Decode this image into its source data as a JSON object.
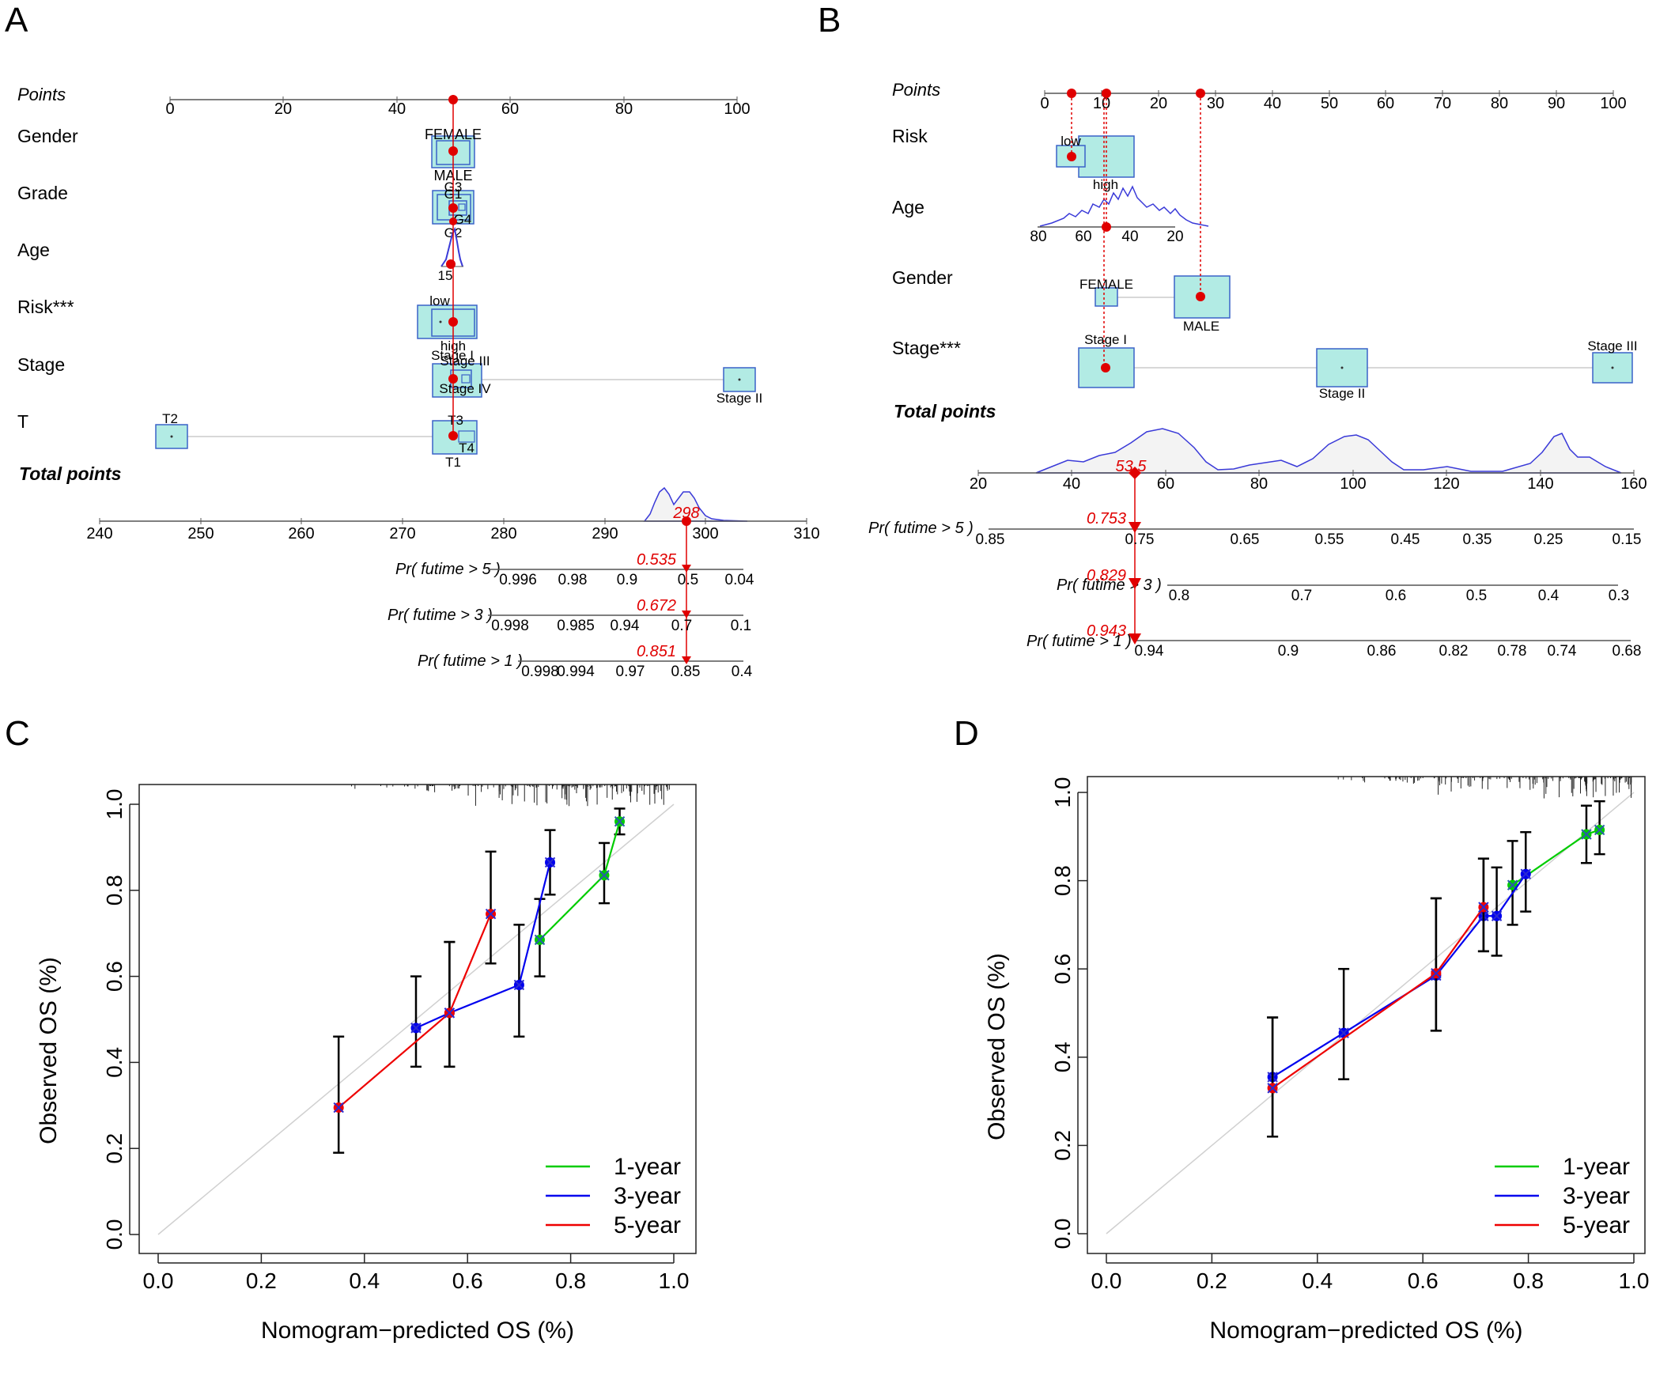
{
  "figure": {
    "panel_labels": [
      "A",
      "B",
      "C",
      "D"
    ]
  },
  "colors": {
    "axis": "#555555",
    "box_fill": "#b2ebe4",
    "box_stroke": "#3a62c8",
    "marker": "#e00000",
    "density": "#3a3ad8",
    "density_fill": "#f3f3f3",
    "one_year": "#00cc00",
    "three_year": "#0000ee",
    "five_year": "#ee0000",
    "diagonal": "#d0d0d0",
    "error_bar": "#000000"
  },
  "nomogramA": {
    "points_title": "Points",
    "points_ticks": [
      "0",
      "20",
      "40",
      "60",
      "80",
      "100"
    ],
    "variables": [
      {
        "name": "Gender",
        "levels": [
          "FEMALE",
          "MALE"
        ]
      },
      {
        "name": "Grade",
        "levels": [
          "G3",
          "G1",
          "G4",
          "G2"
        ]
      },
      {
        "name": "Age",
        "levels": [
          "15"
        ]
      },
      {
        "name": "Risk***",
        "levels": [
          "low",
          "high"
        ]
      },
      {
        "name": "Stage",
        "levels": [
          "Stage I",
          "Stage III",
          "Stage IV",
          "Stage II"
        ]
      },
      {
        "name": "T",
        "levels": [
          "T2",
          "T3",
          "T4",
          "T1"
        ]
      }
    ],
    "total_title": "Total points",
    "total_ticks": [
      "240",
      "250",
      "260",
      "270",
      "280",
      "290",
      "300",
      "310"
    ],
    "total_value": "298",
    "prob_rows": [
      {
        "label": "Pr( futime > 5 )",
        "value": "0.535",
        "ticks": [
          "0.996",
          "0.98",
          "0.9",
          "0.5",
          "0.04"
        ]
      },
      {
        "label": "Pr( futime > 3 )",
        "value": "0.672",
        "ticks": [
          "0.998",
          "0.985",
          "0.94",
          "0.7",
          "0.1"
        ]
      },
      {
        "label": "Pr( futime > 1 )",
        "value": "0.851",
        "ticks": [
          "0.998",
          "0.994",
          "0.97",
          "0.85",
          "0.4"
        ]
      }
    ]
  },
  "nomogramB": {
    "points_title": "Points",
    "points_ticks": [
      "0",
      "10",
      "20",
      "30",
      "40",
      "50",
      "60",
      "70",
      "80",
      "90",
      "100"
    ],
    "variables": [
      {
        "name": "Risk",
        "levels": [
          "low",
          "high"
        ]
      },
      {
        "name": "Age",
        "levels": [
          "80",
          "60",
          "40",
          "20"
        ]
      },
      {
        "name": "Gender",
        "levels": [
          "FEMALE",
          "MALE"
        ]
      },
      {
        "name": "Stage***",
        "levels": [
          "Stage I",
          "Stage II",
          "Stage III"
        ]
      }
    ],
    "total_title": "Total points",
    "total_ticks": [
      "20",
      "40",
      "60",
      "80",
      "100",
      "120",
      "140",
      "160"
    ],
    "total_value": "53.5",
    "prob_rows": [
      {
        "label": "Pr( futime > 5 )",
        "value": "0.753",
        "ticks": [
          "0.85",
          "0.75",
          "0.65",
          "0.55",
          "0.45",
          "0.35",
          "0.25",
          "0.15"
        ]
      },
      {
        "label": "Pr( futime > 3 )",
        "value": "0.829",
        "ticks": [
          "0.8",
          "0.7",
          "0.6",
          "0.5",
          "0.4",
          "0.3"
        ]
      },
      {
        "label": "Pr( futime > 1 )",
        "value": "0.943",
        "ticks": [
          "0.94",
          "0.9",
          "0.86",
          "0.82",
          "0.78",
          "0.74",
          "0.68"
        ]
      }
    ]
  },
  "chart_data": [
    {
      "panel": "C",
      "type": "line",
      "xlabel": "Nomogram−predicted OS (%)",
      "ylabel": "Observed OS (%)",
      "xlim": [
        0,
        1
      ],
      "ylim": [
        0,
        1
      ],
      "x_ticks": [
        "0.0",
        "0.2",
        "0.4",
        "0.6",
        "0.8",
        "1.0"
      ],
      "y_ticks": [
        "0.0",
        "0.2",
        "0.4",
        "0.6",
        "0.8",
        "1.0"
      ],
      "legend": {
        "position": "bottom-right",
        "entries": [
          "1-year",
          "3-year",
          "5-year"
        ]
      },
      "series": [
        {
          "name": "1-year",
          "x": [
            0.74,
            0.865,
            0.895
          ],
          "y": [
            0.685,
            0.835,
            0.96
          ],
          "lower": [
            0.6,
            0.77,
            0.93
          ],
          "upper": [
            0.78,
            0.91,
            0.99
          ]
        },
        {
          "name": "3-year",
          "x": [
            0.5,
            0.565,
            0.7,
            0.76
          ],
          "y": [
            0.48,
            0.515,
            0.58,
            0.865
          ],
          "lower": [
            0.39,
            0.39,
            0.46,
            0.79
          ],
          "upper": [
            0.6,
            0.68,
            0.72,
            0.94
          ]
        },
        {
          "name": "5-year",
          "x": [
            0.35,
            0.565,
            0.645
          ],
          "y": [
            0.295,
            0.515,
            0.745
          ],
          "lower": [
            0.19,
            0.39,
            0.63
          ],
          "upper": [
            0.46,
            0.68,
            0.89
          ]
        }
      ]
    },
    {
      "panel": "D",
      "type": "line",
      "xlabel": "Nomogram−predicted OS (%)",
      "ylabel": "Observed OS (%)",
      "xlim": [
        0,
        1
      ],
      "ylim": [
        0,
        1
      ],
      "x_ticks": [
        "0.0",
        "0.2",
        "0.4",
        "0.6",
        "0.8",
        "1.0"
      ],
      "y_ticks": [
        "0.0",
        "0.2",
        "0.4",
        "0.6",
        "0.8",
        "1.0"
      ],
      "legend": {
        "position": "bottom-right",
        "entries": [
          "1-year",
          "3-year",
          "5-year"
        ]
      },
      "series": [
        {
          "name": "1-year",
          "x": [
            0.77,
            0.91,
            0.935
          ],
          "y": [
            0.79,
            0.905,
            0.915
          ],
          "lower": [
            0.7,
            0.84,
            0.86
          ],
          "upper": [
            0.89,
            0.97,
            0.98
          ]
        },
        {
          "name": "3-year",
          "x": [
            0.315,
            0.45,
            0.625,
            0.715,
            0.74,
            0.795
          ],
          "y": [
            0.355,
            0.455,
            0.585,
            0.72,
            0.72,
            0.815
          ],
          "lower": [
            0.22,
            0.35,
            0.46,
            0.64,
            0.63,
            0.73
          ],
          "upper": [
            0.49,
            0.6,
            0.76,
            0.85,
            0.83,
            0.91
          ]
        },
        {
          "name": "5-year",
          "x": [
            0.315,
            0.625,
            0.715
          ],
          "y": [
            0.33,
            0.59,
            0.74
          ],
          "lower": [
            0.22,
            0.46,
            0.64
          ],
          "upper": [
            0.49,
            0.76,
            0.85
          ]
        }
      ]
    }
  ]
}
